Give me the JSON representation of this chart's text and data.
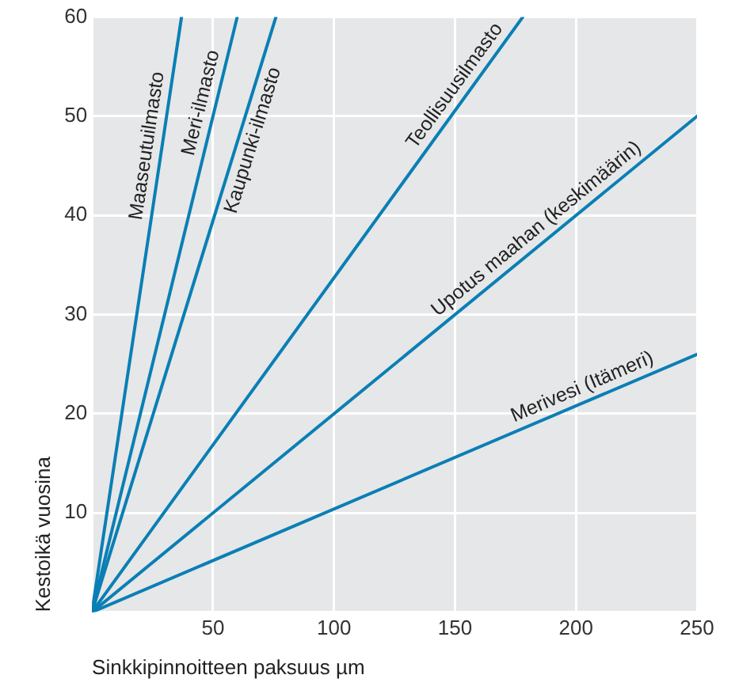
{
  "chart_data": {
    "type": "line",
    "xlabel": "Sinkkipinnoitteen paksuus µm",
    "ylabel": "Kestoikä vuosina",
    "xlim": [
      0,
      250
    ],
    "xticks": [
      {
        "value": 0,
        "label": null
      },
      50,
      100,
      150,
      200,
      250
    ],
    "ylim": [
      0,
      60
    ],
    "yticks": [
      {
        "value": 0,
        "label": null
      },
      10,
      20,
      30,
      40,
      50,
      60
    ],
    "grid": true,
    "legend": false,
    "marker": "none",
    "line_style": "solid",
    "series": [
      {
        "name": "Maaseutuilmasto",
        "color": "#0a7fb5",
        "x": [
          0,
          37
        ],
        "values": [
          0,
          60
        ]
      },
      {
        "name": "Meri-ilmasto",
        "color": "#0a7fb5",
        "x": [
          0,
          60
        ],
        "values": [
          0,
          60
        ]
      },
      {
        "name": "Kaupunki-ilmasto",
        "color": "#0a7fb5",
        "x": [
          0,
          76
        ],
        "values": [
          0,
          60
        ]
      },
      {
        "name": "Teollisuusilmasto",
        "color": "#0a7fb5",
        "x": [
          0,
          178
        ],
        "values": [
          0,
          60
        ]
      },
      {
        "name": "Upotus maahan (keskimäärin)",
        "color": "#0a7fb5",
        "x": [
          0,
          250
        ],
        "values": [
          0,
          50
        ]
      },
      {
        "name": "Merivesi (Itämeri)",
        "color": "#0a7fb5",
        "x": [
          0,
          250
        ],
        "values": [
          0,
          26
        ]
      }
    ]
  }
}
